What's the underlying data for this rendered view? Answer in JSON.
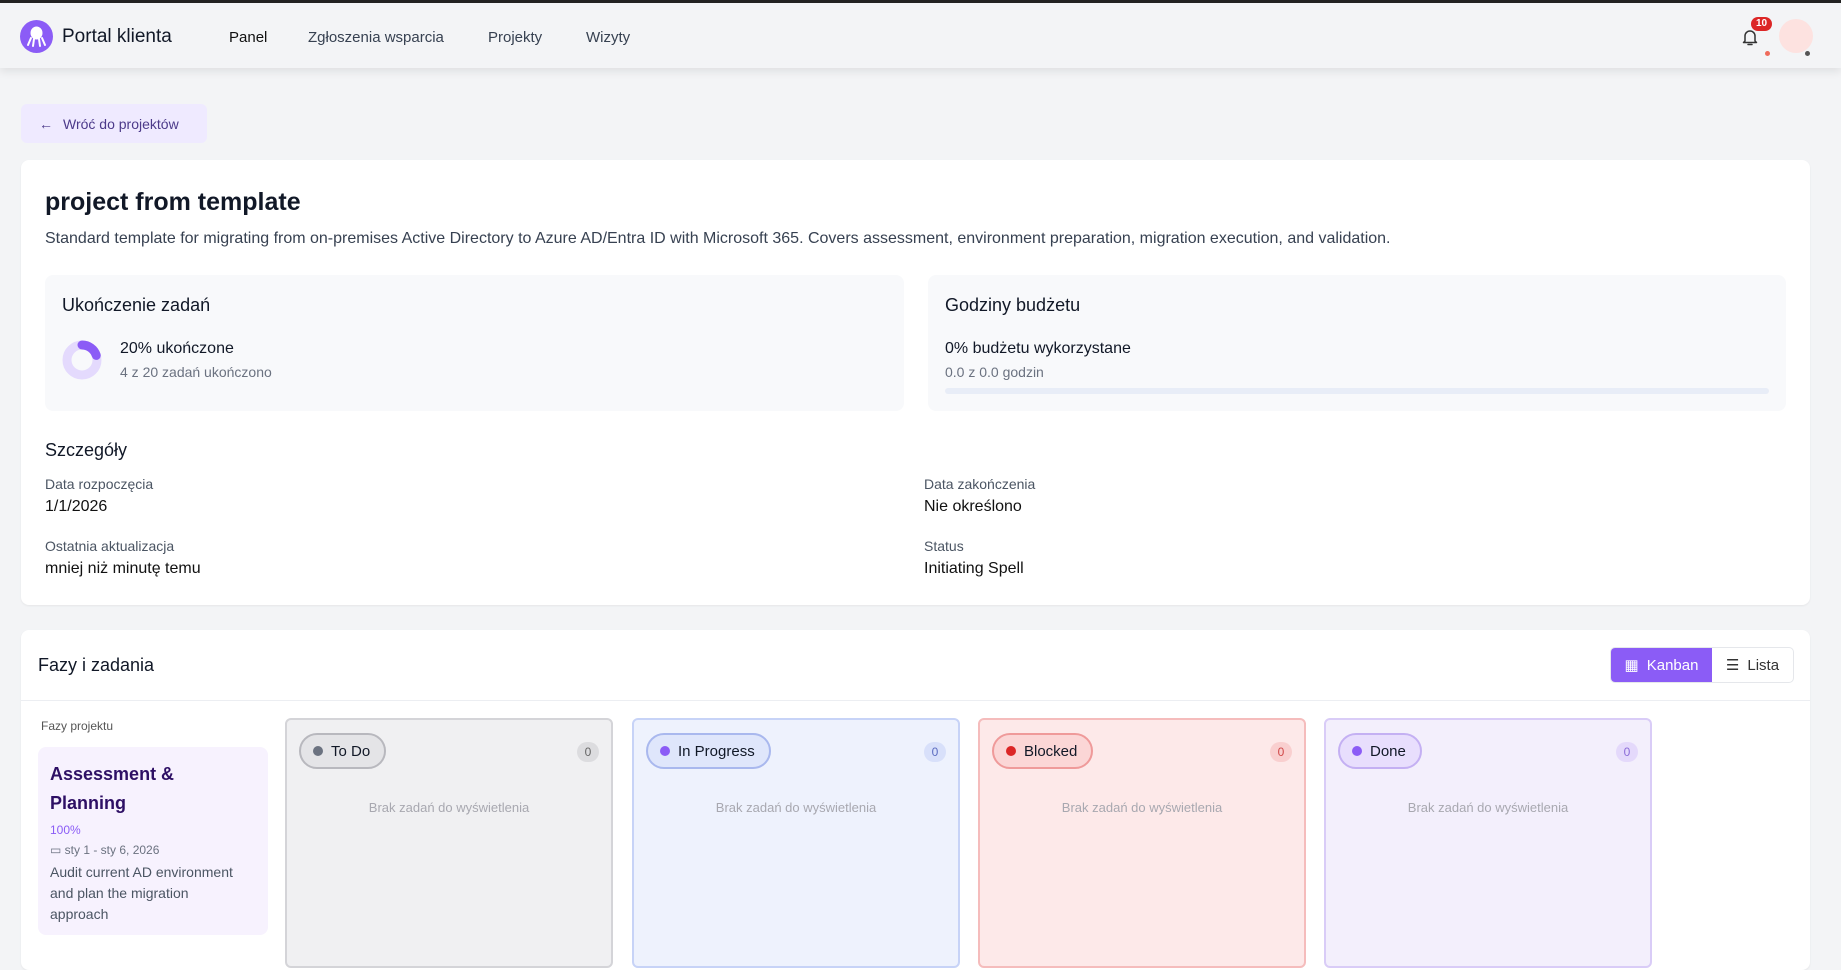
{
  "header": {
    "brand": "Portal klienta",
    "nav": [
      "Panel",
      "Zgłoszenia wsparcia",
      "Projekty",
      "Wizyty"
    ],
    "notification_count": "10"
  },
  "back_label": "Wróć do projektów",
  "project": {
    "title": "project from template",
    "description": "Standard template for migrating from on-premises Active Directory to Azure AD/Entra ID with Microsoft 365. Covers assessment, environment preparation, migration execution, and validation."
  },
  "completion": {
    "title": "Ukończenie zadań",
    "headline": "20% ukończone",
    "sub": "4 z 20 zadań ukończono",
    "percent": 20
  },
  "budget": {
    "title": "Godziny budżetu",
    "headline": "0% budżetu wykorzystane",
    "sub": "0.0 z 0.0 godzin",
    "percent": 0
  },
  "details": {
    "title": "Szczegóły",
    "start_label": "Data rozpoczęcia",
    "start": "1/1/2026",
    "end_label": "Data zakończenia",
    "end": "Nie określono",
    "updated_label": "Ostatnia aktualizacja",
    "updated": "mniej niż minutę temu",
    "status_label": "Status",
    "status": "Initiating Spell"
  },
  "phases": {
    "title": "Fazy i zadania",
    "kanban": "Kanban",
    "list": "Lista",
    "sidebar_label": "Fazy projektu",
    "phase": {
      "name": "Assessment & Planning",
      "percent": "100%",
      "dates": "sty 1 - sty 6, 2026",
      "description": "Audit current AD environment and plan the migration approach"
    },
    "columns": [
      {
        "label": "To Do",
        "count": "0",
        "empty": "Brak zadań do wyświetlenia",
        "color": "#6b7280"
      },
      {
        "label": "In Progress",
        "count": "0",
        "empty": "Brak zadań do wyświetlenia",
        "color": "#8b5cf6"
      },
      {
        "label": "Blocked",
        "count": "0",
        "empty": "Brak zadań do wyświetlenia",
        "color": "#dc2626"
      },
      {
        "label": "Done",
        "count": "0",
        "empty": "Brak zadań do wyświetlenia",
        "color": "#8b5cf6"
      }
    ]
  }
}
